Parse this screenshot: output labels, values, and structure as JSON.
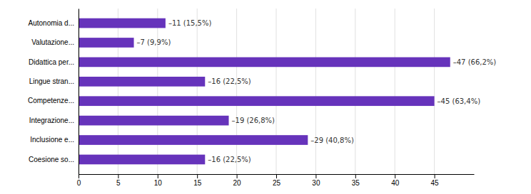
{
  "chart_data": {
    "type": "bar",
    "orientation": "horizontal",
    "categories": [
      "Autonomia d...",
      "Valutazione...",
      "Didattica per...",
      "Lingue stran...",
      "Competenze...",
      "Integrazione...",
      "Inclusione e...",
      "Coesione so..."
    ],
    "values": [
      11,
      7,
      47,
      16,
      45,
      19,
      29,
      16
    ],
    "value_labels": [
      "–11 (15,5%)",
      "–7 (9,9%)",
      "–47 (66,2%)",
      "–16 (22,5%)",
      "–45 (63,4%)",
      "–19 (26,8%)",
      "–29 (40,8%)",
      "–16 (22,5%)"
    ],
    "color": "#6633bb",
    "xlim": [
      0,
      50
    ],
    "xticks": [
      0,
      5,
      10,
      15,
      20,
      25,
      30,
      35,
      40,
      45
    ],
    "grid": true,
    "data_labels": true
  }
}
